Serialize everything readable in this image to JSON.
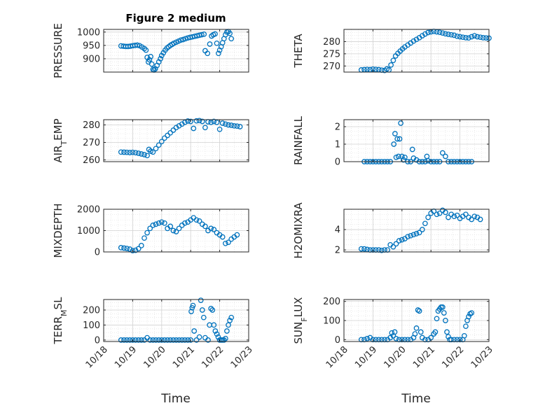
{
  "figure": {
    "title": "Figure 2 medium",
    "x_label": "Time",
    "marker_color": "#0072BD",
    "x_tick_labels": [
      "10/18",
      "10/19",
      "10/20",
      "10/21",
      "10/22",
      "10/23"
    ]
  },
  "chart_data": [
    {
      "type": "scatter",
      "panel": "PRESSURE",
      "ylabel": "PRESSURE",
      "xlim": [
        0,
        5
      ],
      "ylim": [
        850,
        1010
      ],
      "yticks": [
        900,
        950,
        1000
      ],
      "grid": true,
      "x": [
        0.6,
        0.68,
        0.76,
        0.84,
        0.92,
        1.0,
        1.08,
        1.16,
        1.24,
        1.32,
        1.4,
        1.46,
        1.5,
        1.54,
        1.58,
        1.62,
        1.66,
        1.7,
        1.74,
        1.78,
        1.84,
        1.9,
        1.96,
        2.0,
        2.06,
        2.12,
        2.18,
        2.24,
        2.3,
        2.36,
        2.42,
        2.5,
        2.58,
        2.66,
        2.74,
        2.82,
        2.9,
        2.98,
        3.06,
        3.14,
        3.22,
        3.3,
        3.38,
        3.46,
        3.5,
        3.58,
        3.66,
        3.72,
        3.78,
        3.84,
        3.9,
        3.96,
        4.0,
        4.05,
        4.1,
        4.15,
        4.2,
        4.25,
        4.3,
        4.35,
        4.4
      ],
      "y": [
        948,
        947,
        946,
        946,
        947,
        949,
        950,
        951,
        949,
        944,
        938,
        932,
        905,
        888,
        896,
        908,
        880,
        860,
        858,
        862,
        875,
        888,
        900,
        912,
        922,
        932,
        940,
        945,
        950,
        954,
        958,
        962,
        966,
        970,
        972,
        975,
        978,
        980,
        982,
        984,
        986,
        988,
        990,
        992,
        930,
        920,
        955,
        985,
        990,
        993,
        958,
        920,
        932,
        945,
        960,
        975,
        990,
        1000,
        1002,
        995,
        975
      ]
    },
    {
      "type": "scatter",
      "panel": "THETA",
      "ylabel": "THETA",
      "xlim": [
        0,
        5
      ],
      "ylim": [
        267.5,
        285
      ],
      "yticks": [
        270,
        275,
        280
      ],
      "grid": true,
      "x": [
        0.6,
        0.7,
        0.8,
        0.9,
        1.0,
        1.1,
        1.2,
        1.3,
        1.4,
        1.48,
        1.55,
        1.62,
        1.7,
        1.78,
        1.86,
        1.94,
        2.02,
        2.1,
        2.2,
        2.3,
        2.4,
        2.5,
        2.6,
        2.7,
        2.8,
        2.9,
        3.0,
        3.1,
        3.2,
        3.3,
        3.4,
        3.5,
        3.6,
        3.7,
        3.8,
        3.9,
        4.0,
        4.1,
        4.2,
        4.3,
        4.4,
        4.5,
        4.6,
        4.7,
        4.8,
        4.9,
        5.0,
        5.1,
        5.2
      ],
      "y": [
        268.4,
        268.5,
        268.6,
        268.5,
        268.7,
        268.6,
        268.5,
        268.3,
        268.2,
        268.8,
        268.4,
        270.4,
        272.3,
        274.1,
        275.2,
        276.1,
        277.0,
        277.8,
        278.6,
        279.4,
        280.2,
        280.9,
        281.6,
        282.4,
        283.1,
        283.7,
        284.0,
        284.2,
        284.0,
        283.8,
        283.5,
        283.2,
        283.0,
        282.8,
        282.6,
        282.2,
        282.0,
        281.8,
        281.6,
        281.5,
        282.0,
        282.4,
        282.0,
        281.8,
        281.6,
        281.5,
        281.4,
        281.5,
        281.6
      ]
    },
    {
      "type": "scatter",
      "panel": "AIR_TEMP",
      "ylabel": "AIR_TEMP",
      "xlim": [
        0,
        5
      ],
      "ylim": [
        259,
        283
      ],
      "yticks": [
        260,
        270,
        280
      ],
      "grid": true,
      "x": [
        0.6,
        0.7,
        0.8,
        0.9,
        1.0,
        1.1,
        1.2,
        1.3,
        1.4,
        1.5,
        1.56,
        1.62,
        1.7,
        1.8,
        1.9,
        2.0,
        2.1,
        2.2,
        2.3,
        2.4,
        2.5,
        2.6,
        2.7,
        2.8,
        2.9,
        3.0,
        3.1,
        3.2,
        3.3,
        3.4,
        3.5,
        3.6,
        3.7,
        3.8,
        3.9,
        4.0,
        4.1,
        4.2,
        4.3,
        4.4,
        4.5,
        4.6,
        4.7
      ],
      "y": [
        264.5,
        264.4,
        264.3,
        264.2,
        264.3,
        264.1,
        263.8,
        263.4,
        263.0,
        262.5,
        266.0,
        265.0,
        264.5,
        266.5,
        268.5,
        270.5,
        272.5,
        274.0,
        275.5,
        277.0,
        278.5,
        279.5,
        280.5,
        281.5,
        282.2,
        282.0,
        278.0,
        282.3,
        282.5,
        282.0,
        278.5,
        281.8,
        281.5,
        282.0,
        281.5,
        277.5,
        281.0,
        280.5,
        280.0,
        279.8,
        279.5,
        279.3,
        279.0
      ]
    },
    {
      "type": "scatter",
      "panel": "RAINFALL",
      "ylabel": "RAINFALL",
      "xlim": [
        0,
        5
      ],
      "ylim": [
        0,
        2.4
      ],
      "yticks": [
        0,
        1,
        2
      ],
      "grid": true,
      "x": [
        0.7,
        0.8,
        0.9,
        1.0,
        1.1,
        1.2,
        1.3,
        1.4,
        1.5,
        1.6,
        1.72,
        1.76,
        1.8,
        1.84,
        1.88,
        1.92,
        1.96,
        2.0,
        2.05,
        2.1,
        2.2,
        2.3,
        2.36,
        2.4,
        2.5,
        2.6,
        2.7,
        2.8,
        2.86,
        2.9,
        3.0,
        3.1,
        3.2,
        3.3,
        3.4,
        3.5,
        3.6,
        3.7,
        3.8,
        3.9,
        4.0,
        4.1,
        4.2,
        4.3,
        4.4
      ],
      "y": [
        0,
        0,
        0,
        0,
        0,
        0,
        0,
        0,
        0,
        0,
        1.0,
        1.6,
        0.25,
        1.3,
        0.3,
        1.3,
        2.2,
        0.3,
        0.1,
        0.25,
        0,
        0,
        0.7,
        0.2,
        0.1,
        0,
        0,
        0,
        0.3,
        0.05,
        0,
        0,
        0,
        0,
        0.5,
        0.3,
        0,
        0,
        0,
        0,
        0,
        0,
        0,
        0,
        0
      ]
    },
    {
      "type": "scatter",
      "panel": "MIXDEPTH",
      "ylabel": "MIXDEPTH",
      "xlim": [
        0,
        5
      ],
      "ylim": [
        0,
        2000
      ],
      "yticks": [
        0,
        1000,
        2000
      ],
      "grid": true,
      "x": [
        0.6,
        0.7,
        0.8,
        0.9,
        1.0,
        1.1,
        1.2,
        1.3,
        1.4,
        1.5,
        1.6,
        1.7,
        1.8,
        1.9,
        2.0,
        2.1,
        2.2,
        2.3,
        2.4,
        2.5,
        2.6,
        2.7,
        2.8,
        2.9,
        3.0,
        3.1,
        3.2,
        3.3,
        3.4,
        3.5,
        3.6,
        3.7,
        3.8,
        3.9,
        4.0,
        4.1,
        4.2,
        4.3,
        4.4,
        4.5,
        4.6
      ],
      "y": [
        200,
        180,
        160,
        130,
        60,
        80,
        150,
        300,
        650,
        900,
        1100,
        1250,
        1300,
        1350,
        1400,
        1350,
        1100,
        1200,
        1000,
        950,
        1100,
        1250,
        1350,
        1400,
        1500,
        1600,
        1500,
        1450,
        1300,
        1200,
        1000,
        1100,
        1050,
        900,
        800,
        700,
        400,
        450,
        600,
        700,
        800
      ]
    },
    {
      "type": "scatter",
      "panel": "H2OMIXRA",
      "ylabel": "H2OMIXRA",
      "xlim": [
        0,
        5
      ],
      "ylim": [
        1.8,
        6
      ],
      "yticks": [
        2,
        4
      ],
      "grid": true,
      "x": [
        0.6,
        0.7,
        0.8,
        0.9,
        1.0,
        1.1,
        1.2,
        1.3,
        1.4,
        1.5,
        1.6,
        1.7,
        1.8,
        1.9,
        2.0,
        2.1,
        2.2,
        2.3,
        2.4,
        2.5,
        2.6,
        2.7,
        2.8,
        2.9,
        3.0,
        3.1,
        3.2,
        3.3,
        3.4,
        3.5,
        3.6,
        3.7,
        3.8,
        3.9,
        4.0,
        4.1,
        4.2,
        4.3,
        4.4,
        4.5,
        4.6,
        4.7
      ],
      "y": [
        2.1,
        2.1,
        2.05,
        2.0,
        2.0,
        2.0,
        2.0,
        1.95,
        2.0,
        2.0,
        2.5,
        2.3,
        2.6,
        2.9,
        3.0,
        3.1,
        3.3,
        3.4,
        3.5,
        3.6,
        3.7,
        4.0,
        4.6,
        5.2,
        5.6,
        5.8,
        5.5,
        5.6,
        5.9,
        5.7,
        5.2,
        5.5,
        5.3,
        5.4,
        5.1,
        5.3,
        5.5,
        5.2,
        5.0,
        5.3,
        5.2,
        5.0
      ]
    },
    {
      "type": "scatter",
      "panel": "TERR_MSL",
      "ylabel": "TERR_MSL",
      "xlim": [
        0,
        5
      ],
      "ylim": [
        -10,
        270
      ],
      "yticks": [
        0,
        100,
        200
      ],
      "grid": true,
      "x": [
        0.6,
        0.7,
        0.8,
        0.9,
        1.0,
        1.1,
        1.2,
        1.3,
        1.4,
        1.5,
        1.6,
        1.7,
        1.8,
        1.9,
        2.0,
        2.1,
        2.2,
        2.3,
        2.4,
        2.5,
        2.6,
        2.7,
        2.8,
        2.9,
        3.0,
        3.02,
        3.05,
        3.08,
        3.12,
        3.2,
        3.3,
        3.35,
        3.4,
        3.45,
        3.5,
        3.6,
        3.65,
        3.7,
        3.75,
        3.8,
        3.85,
        3.9,
        3.95,
        4.0,
        4.05,
        4.1,
        4.15,
        4.2,
        4.25,
        4.3,
        4.35,
        4.4
      ],
      "y": [
        0,
        0,
        0,
        0,
        0,
        0,
        0,
        0,
        0,
        15,
        0,
        0,
        0,
        0,
        0,
        0,
        0,
        0,
        0,
        0,
        0,
        0,
        0,
        0,
        0,
        190,
        215,
        230,
        60,
        0,
        20,
        265,
        200,
        150,
        15,
        0,
        100,
        210,
        200,
        100,
        60,
        40,
        20,
        0,
        0,
        0,
        0,
        10,
        60,
        100,
        130,
        150
      ]
    },
    {
      "type": "scatter",
      "panel": "SUN_FLUX",
      "ylabel": "SUN_FLUX",
      "xlim": [
        0,
        5
      ],
      "ylim": [
        -10,
        210
      ],
      "yticks": [
        0,
        100,
        200
      ],
      "grid": true,
      "x": [
        0.6,
        0.7,
        0.8,
        0.9,
        1.0,
        1.1,
        1.2,
        1.3,
        1.4,
        1.5,
        1.6,
        1.65,
        1.7,
        1.75,
        1.8,
        1.9,
        2.0,
        2.1,
        2.2,
        2.3,
        2.4,
        2.45,
        2.5,
        2.55,
        2.6,
        2.65,
        2.7,
        2.8,
        2.9,
        3.0,
        3.1,
        3.15,
        3.2,
        3.25,
        3.3,
        3.35,
        3.4,
        3.45,
        3.5,
        3.55,
        3.6,
        3.65,
        3.7,
        3.8,
        3.9,
        4.0,
        4.1,
        4.15,
        4.2,
        4.25,
        4.3,
        4.35,
        4.4
      ],
      "y": [
        0,
        0,
        5,
        10,
        0,
        0,
        0,
        0,
        0,
        0,
        10,
        35,
        20,
        40,
        5,
        0,
        0,
        0,
        0,
        0,
        10,
        30,
        60,
        155,
        150,
        40,
        10,
        0,
        0,
        10,
        30,
        40,
        110,
        150,
        160,
        170,
        170,
        140,
        100,
        40,
        15,
        0,
        0,
        0,
        0,
        0,
        0,
        20,
        70,
        100,
        120,
        135,
        140
      ]
    }
  ]
}
